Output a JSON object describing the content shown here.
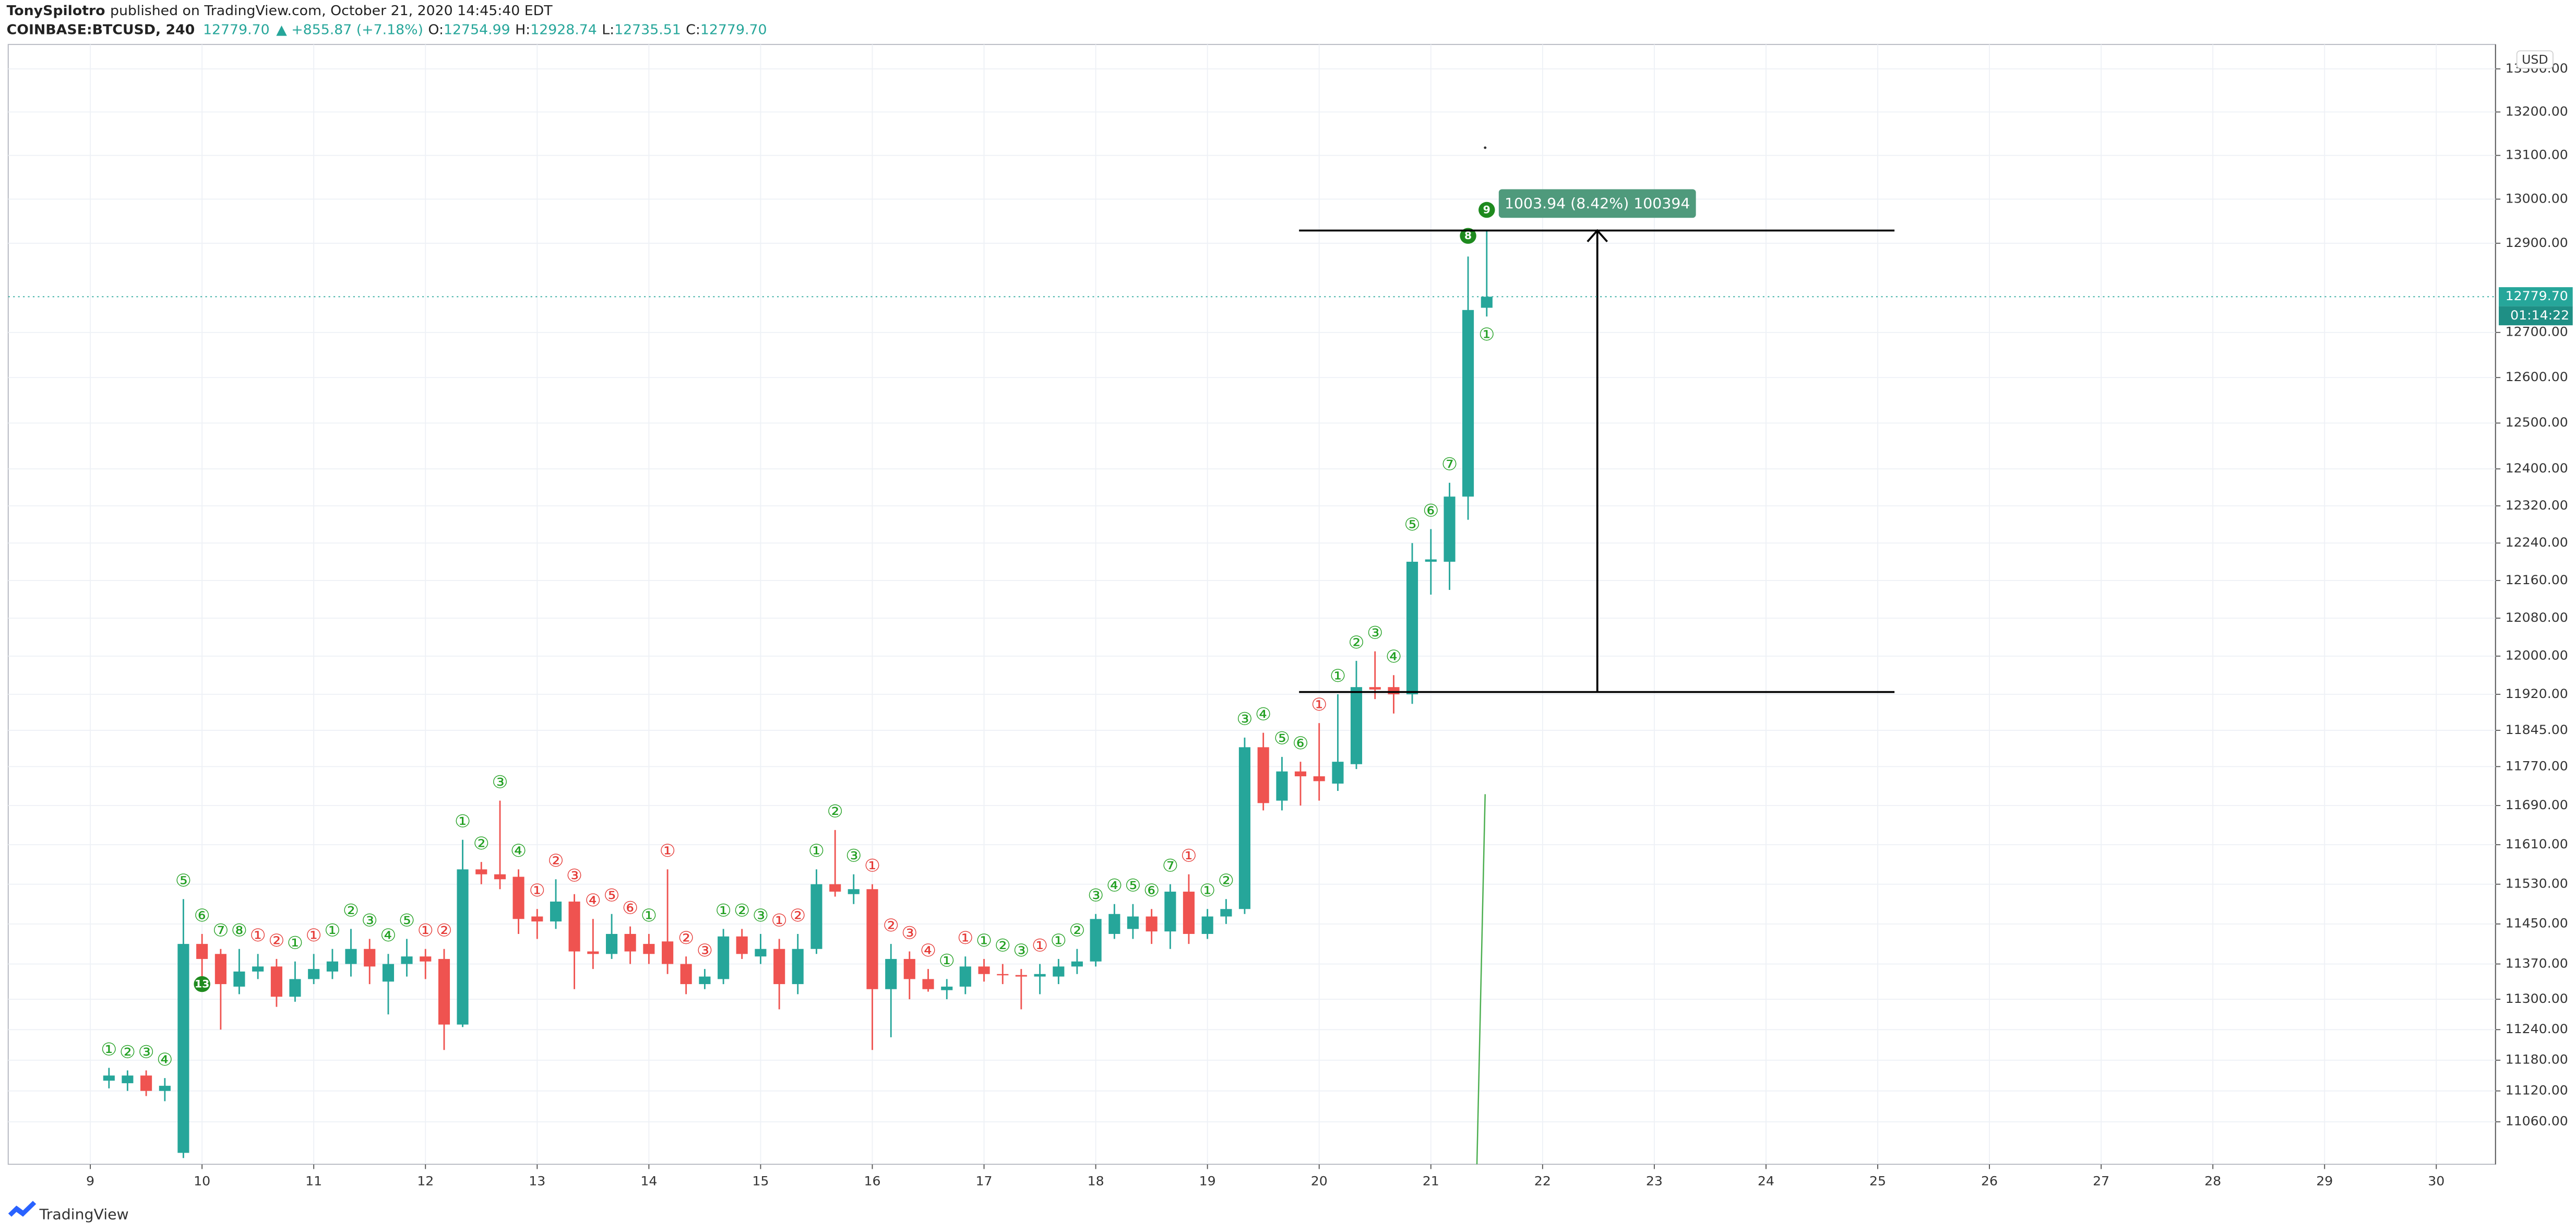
{
  "header": {
    "author": "TonySpilotro",
    "published": "published on TradingView.com, October 21, 2020 14:45:40 EDT",
    "symbol": "COINBASE:BTCUSD, 240",
    "last": "12779.70",
    "change": "▲ +855.87 (+7.18%)",
    "ohlc": [
      {
        "label": "O:",
        "value": "12754.99"
      },
      {
        "label": "H:",
        "value": "12928.74"
      },
      {
        "label": "L:",
        "value": "12735.51"
      },
      {
        "label": "C:",
        "value": "12779.70"
      }
    ]
  },
  "footer": "TradingView",
  "chart_data": {
    "type": "candlestick",
    "currency": "USD",
    "log": true,
    "grid": true,
    "up_color": "#26a69a",
    "down_color": "#ef5350",
    "xlim": [
      8.265,
      30.53
    ],
    "xticks": [
      9,
      10,
      11,
      12,
      13,
      14,
      15,
      16,
      17,
      18,
      19,
      20,
      21,
      22,
      23,
      24,
      25,
      26,
      27,
      28,
      29,
      30
    ],
    "ylim": [
      10978,
      13357
    ],
    "yticks": [
      {
        "value": 13300,
        "label": "13300.00"
      },
      {
        "value": 13200,
        "label": "13200.00"
      },
      {
        "value": 13100,
        "label": "13100.00"
      },
      {
        "value": 13000,
        "label": "13000.00"
      },
      {
        "value": 12900,
        "label": "12900.00"
      },
      {
        "value": 12700,
        "label": "12700.00"
      },
      {
        "value": 12600,
        "label": "12600.00"
      },
      {
        "value": 12500,
        "label": "12500.00"
      },
      {
        "value": 12400,
        "label": "12400.00"
      },
      {
        "value": 12320,
        "label": "12320.00"
      },
      {
        "value": 12240,
        "label": "12240.00"
      },
      {
        "value": 12160,
        "label": "12160.00"
      },
      {
        "value": 12080,
        "label": "12080.00"
      },
      {
        "value": 12000,
        "label": "12000.00"
      },
      {
        "value": 11920,
        "label": "11920.00"
      },
      {
        "value": 11845,
        "label": "11845.00"
      },
      {
        "value": 11770,
        "label": "11770.00"
      },
      {
        "value": 11690,
        "label": "11690.00"
      },
      {
        "value": 11610,
        "label": "11610.00"
      },
      {
        "value": 11530,
        "label": "11530.00"
      },
      {
        "value": 11450,
        "label": "11450.00"
      },
      {
        "value": 11370,
        "label": "11370.00"
      },
      {
        "value": 11300,
        "label": "11300.00"
      },
      {
        "value": 11240,
        "label": "11240.00"
      },
      {
        "value": 11180,
        "label": "11180.00"
      },
      {
        "value": 11120,
        "label": "11120.00"
      },
      {
        "value": 11060,
        "label": "11060.00"
      }
    ],
    "x": [
      9.167,
      9.333,
      9.5,
      9.667,
      9.833,
      10,
      10.167,
      10.333,
      10.5,
      10.667,
      10.833,
      11,
      11.167,
      11.333,
      11.5,
      11.667,
      11.833,
      12,
      12.167,
      12.333,
      12.5,
      12.667,
      12.833,
      13,
      13.167,
      13.333,
      13.5,
      13.667,
      13.833,
      14,
      14.167,
      14.333,
      14.5,
      14.667,
      14.833,
      15,
      15.167,
      15.333,
      15.5,
      15.667,
      15.833,
      16,
      16.167,
      16.333,
      16.5,
      16.667,
      16.833,
      17,
      17.167,
      17.333,
      17.5,
      17.667,
      17.833,
      18,
      18.167,
      18.333,
      18.5,
      18.667,
      18.833,
      19,
      19.167,
      19.333,
      19.5,
      19.667,
      19.833,
      20,
      20.167,
      20.333,
      20.5,
      20.667,
      20.833,
      21,
      21.167,
      21.333,
      21.5
    ],
    "open": [
      11140,
      11135,
      11150,
      11120,
      11000,
      11410,
      11390,
      11325,
      11355,
      11365,
      11305,
      11340,
      11355,
      11370,
      11400,
      11335,
      11370,
      11385,
      11380,
      11250,
      11560,
      11550,
      11545,
      11465,
      11455,
      11495,
      11395,
      11390,
      11430,
      11410,
      11415,
      11370,
      11330,
      11340,
      11425,
      11385,
      11400,
      11330,
      11400,
      11530,
      11510,
      11520,
      11320,
      11380,
      11340,
      11318,
      11325,
      11365,
      11350,
      11348,
      11345,
      11345,
      11365,
      11375,
      11430,
      11440,
      11465,
      11435,
      11515,
      11430,
      11465,
      11480,
      11810,
      11700,
      11760,
      11750,
      11735,
      11775,
      11935,
      11935,
      11920,
      12200,
      12200,
      12340,
      12754.99
    ],
    "high": [
      11165,
      11160,
      11160,
      11145,
      11500,
      11430,
      11400,
      11400,
      11390,
      11380,
      11375,
      11390,
      11400,
      11440,
      11420,
      11390,
      11420,
      11400,
      11400,
      11620,
      11575,
      11700,
      11560,
      11480,
      11540,
      11510,
      11460,
      11470,
      11445,
      11430,
      11560,
      11385,
      11360,
      11440,
      11440,
      11430,
      11420,
      11430,
      11560,
      11640,
      11550,
      11530,
      11410,
      11395,
      11360,
      11340,
      11385,
      11380,
      11370,
      11360,
      11370,
      11380,
      11400,
      11470,
      11490,
      11490,
      11480,
      11530,
      11550,
      11480,
      11500,
      11830,
      11840,
      11790,
      11780,
      11860,
      11920,
      11990,
      12010,
      11960,
      12240,
      12270,
      12370,
      12870,
      12928.74
    ],
    "low": [
      11125,
      11120,
      11110,
      11100,
      10990,
      11330,
      11240,
      11310,
      11340,
      11285,
      11295,
      11330,
      11340,
      11345,
      11330,
      11270,
      11345,
      11340,
      11200,
      11245,
      11530,
      11520,
      11430,
      11420,
      11440,
      11320,
      11360,
      11380,
      11370,
      11370,
      11350,
      11310,
      11320,
      11330,
      11380,
      11370,
      11280,
      11310,
      11390,
      11505,
      11490,
      11200,
      11225,
      11300,
      11315,
      11300,
      11310,
      11335,
      11330,
      11280,
      11310,
      11330,
      11350,
      11365,
      11420,
      11420,
      11410,
      11400,
      11410,
      11420,
      11450,
      11470,
      11680,
      11680,
      11690,
      11700,
      11720,
      11765,
      11910,
      11880,
      11900,
      12130,
      12140,
      12290,
      12735.51
    ],
    "close": [
      11150,
      11150,
      11120,
      11130,
      11410,
      11380,
      11330,
      11355,
      11365,
      11305,
      11340,
      11360,
      11375,
      11400,
      11365,
      11370,
      11385,
      11375,
      11250,
      11560,
      11550,
      11540,
      11460,
      11455,
      11495,
      11395,
      11390,
      11430,
      11395,
      11390,
      11370,
      11330,
      11345,
      11425,
      11390,
      11400,
      11330,
      11400,
      11530,
      11515,
      11520,
      11320,
      11380,
      11340,
      11320,
      11325,
      11365,
      11350,
      11348,
      11345,
      11350,
      11365,
      11375,
      11460,
      11470,
      11465,
      11435,
      11515,
      11430,
      11465,
      11480,
      11810,
      11695,
      11760,
      11750,
      11740,
      11780,
      11935,
      11930,
      11920,
      12200,
      12205,
      12340,
      12750,
      12779.7
    ],
    "td_labels": [
      "①",
      "②",
      "③",
      "④",
      "⑤",
      "⑥",
      "⑦",
      "⑧",
      "①",
      "②",
      "①",
      "①",
      "①",
      "②",
      "③",
      "④",
      "⑤",
      "①",
      "②",
      "①",
      "②",
      "③",
      "④",
      "①",
      "②",
      "③",
      "④",
      "⑤",
      "⑥",
      "①",
      "①",
      "②",
      "③",
      "①",
      "②",
      "③",
      "①",
      "②",
      "①",
      "②",
      "③",
      "①",
      "②",
      "③",
      "④",
      "①",
      "①",
      "①",
      "②",
      "③",
      "①",
      "①",
      "②",
      "③",
      "④",
      "⑤",
      "⑥",
      "⑦",
      "①",
      "①",
      "②",
      "③",
      "④",
      "⑤",
      "⑥",
      "①",
      "①",
      "②",
      "③",
      "④",
      "⑤",
      "⑥",
      "⑦",
      null,
      "①"
    ],
    "td_colors": [
      "#22a022",
      "#22a022",
      "#22a022",
      "#22a022",
      "#22a022",
      "#22a022",
      "#22a022",
      "#22a022",
      "#e53935",
      "#e53935",
      "#22a022",
      "#e53935",
      "#22a022",
      "#22a022",
      "#22a022",
      "#22a022",
      "#22a022",
      "#e53935",
      "#e53935",
      "#22a022",
      "#22a022",
      "#22a022",
      "#22a022",
      "#e53935",
      "#e53935",
      "#e53935",
      "#e53935",
      "#e53935",
      "#e53935",
      "#22a022",
      "#e53935",
      "#e53935",
      "#e53935",
      "#22a022",
      "#22a022",
      "#22a022",
      "#e53935",
      "#e53935",
      "#22a022",
      "#22a022",
      "#22a022",
      "#e53935",
      "#e53935",
      "#e53935",
      "#e53935",
      "#22a022",
      "#e53935",
      "#22a022",
      "#22a022",
      "#22a022",
      "#e53935",
      "#22a022",
      "#22a022",
      "#22a022",
      "#22a022",
      "#22a022",
      "#22a022",
      "#22a022",
      "#e53935",
      "#22a022",
      "#22a022",
      "#22a022",
      "#22a022",
      "#22a022",
      "#22a022",
      "#e53935",
      "#22a022",
      "#22a022",
      "#22a022",
      "#22a022",
      "#22a022",
      "#22a022",
      "#22a022",
      null,
      "#22a022"
    ],
    "td_countdown": [
      {
        "candle": 5,
        "label": "13",
        "position": "below"
      },
      {
        "candle": 73,
        "label": "8",
        "position": "above"
      },
      {
        "candle": 74,
        "label": "9",
        "position": "above"
      }
    ],
    "countdown_color": "#1e8a1e",
    "measure": {
      "from": 11924.8,
      "to": 12928.74,
      "x_start": 19.82,
      "x_end": 25.15,
      "x_arrow": 22.49,
      "label": "1003.94 (8.42%) 100394",
      "color": "#4f9a7c"
    },
    "last_price": 12779.7,
    "last_price_label": "12779.70",
    "bar_countdown": "01:14:22"
  }
}
